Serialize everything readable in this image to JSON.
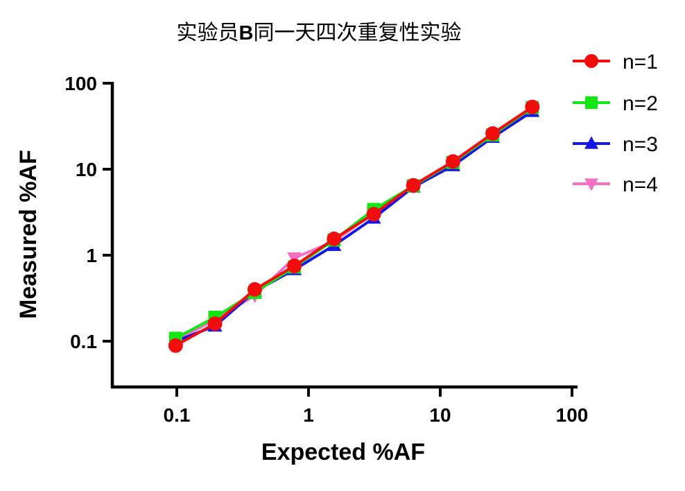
{
  "chart_data": {
    "type": "line",
    "title": "实验员B同一天四次重复性实验",
    "title_parts": [
      "实验员",
      "B",
      "同一天四次重复性实验"
    ],
    "xlabel": "Expected %AF",
    "ylabel": "Measured %AF",
    "x_scale": "log",
    "y_scale": "log",
    "grid": false,
    "legend_position": "right-outside",
    "x_ticks": [
      0.1,
      1,
      10,
      100
    ],
    "x_tick_labels": [
      "0.1",
      "1",
      "10",
      "100"
    ],
    "y_ticks": [
      100,
      10,
      1,
      0.1
    ],
    "y_tick_labels": [
      "100",
      "10",
      "1",
      "0.1"
    ],
    "xlim": [
      0.032,
      110
    ],
    "ylim": [
      0.027,
      100
    ],
    "x": [
      0.098,
      0.195,
      0.391,
      0.781,
      1.563,
      3.125,
      6.25,
      12.5,
      25,
      50
    ],
    "series": [
      {
        "name": "n=1",
        "color": "#f20d0d",
        "marker": "circle",
        "values": [
          0.089,
          0.16,
          0.4,
          0.75,
          1.55,
          3.0,
          6.5,
          12.3,
          26,
          53
        ]
      },
      {
        "name": "n=2",
        "color": "#14e614",
        "marker": "square",
        "values": [
          0.108,
          0.19,
          0.37,
          0.73,
          1.5,
          3.4,
          6.4,
          12.0,
          25,
          52
        ]
      },
      {
        "name": "n=3",
        "color": "#1414eb",
        "marker": "triangle-up",
        "values": [
          0.1,
          0.15,
          0.38,
          0.68,
          1.3,
          2.7,
          6.2,
          11.0,
          23.5,
          47
        ]
      },
      {
        "name": "n=4",
        "color": "#f76fc4",
        "marker": "triangle-down",
        "values": [
          0.1,
          0.18,
          0.34,
          0.93,
          1.45,
          3.1,
          6.3,
          12.0,
          24.5,
          49
        ]
      }
    ]
  }
}
